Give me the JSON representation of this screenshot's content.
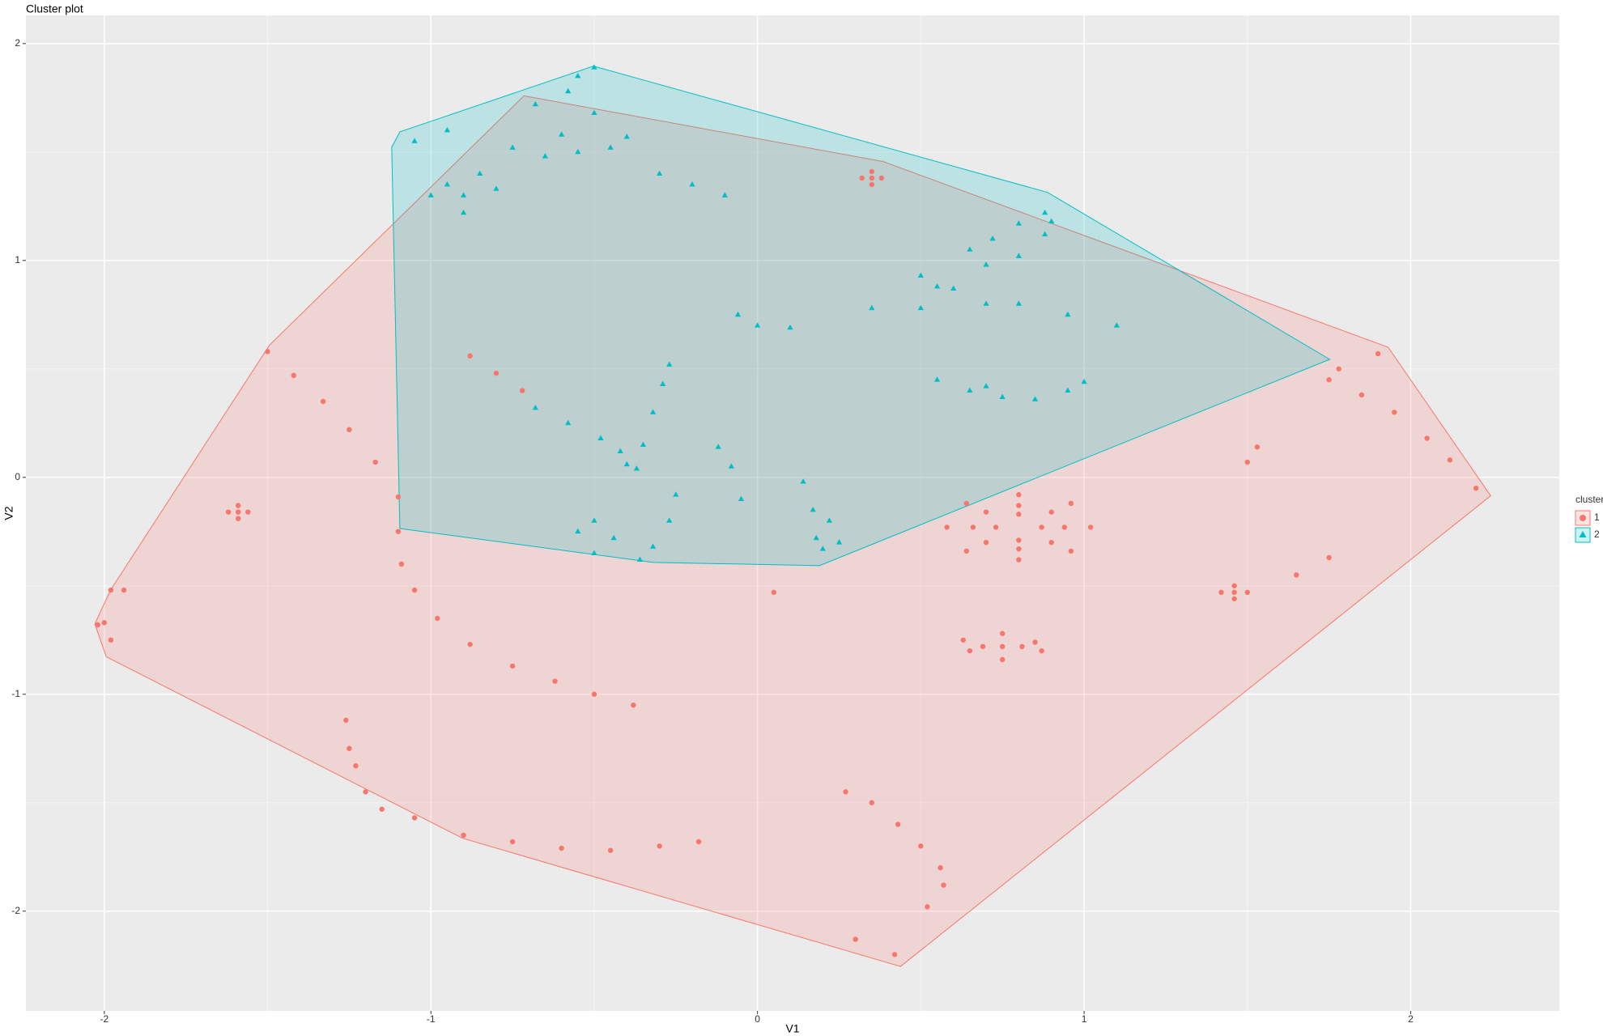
{
  "chart_data": {
    "type": "scatter",
    "title": "Cluster plot",
    "x_label": "V1",
    "y_label": "V2",
    "legend_title": "cluster",
    "xlim": [
      -2.24,
      2.455
    ],
    "ylim": [
      -2.46,
      2.13
    ],
    "xticks": [
      -2,
      -1,
      0,
      1,
      2
    ],
    "yticks": [
      -2,
      -1,
      0,
      1,
      2
    ],
    "grid": true,
    "legend": "right",
    "series": [
      {
        "name": "1",
        "color": "#F8766D",
        "shape": "circle",
        "x": [
          -1.5,
          -1.42,
          -1.33,
          -1.25,
          -1.17,
          -1.1,
          -1.1,
          -1.09,
          -1.05,
          -0.98,
          -0.88,
          -0.75,
          -0.62,
          -0.5,
          -0.38,
          -1.59,
          -1.62,
          -1.56,
          -1.59,
          -1.59,
          -1.98,
          -2.0,
          -1.98,
          -2.02,
          -1.94,
          -1.26,
          -1.25,
          -1.23,
          -1.2,
          -1.15,
          -1.05,
          -0.9,
          -0.75,
          -0.6,
          -0.45,
          -0.3,
          -0.18,
          0.05,
          0.87,
          0.8,
          0.73,
          0.8,
          0.94,
          0.9,
          0.8,
          0.7,
          0.66,
          0.7,
          0.8,
          0.9,
          1.02,
          0.96,
          0.8,
          0.64,
          0.58,
          0.64,
          0.8,
          0.96,
          0.75,
          0.81,
          0.69,
          0.75,
          0.75,
          0.85,
          0.65,
          0.63,
          0.87,
          1.46,
          1.5,
          1.42,
          1.46,
          1.46,
          0.35,
          0.38,
          0.32,
          0.35,
          0.35,
          1.75,
          1.85,
          1.95,
          2.05,
          2.12,
          2.2,
          1.78,
          1.9,
          1.5,
          1.53,
          1.65,
          1.75,
          0.27,
          0.35,
          0.43,
          0.5,
          0.56,
          0.57,
          0.52,
          0.42,
          0.3,
          -0.88,
          -0.8,
          -0.72
        ],
        "y": [
          0.58,
          0.47,
          0.35,
          0.22,
          0.07,
          -0.09,
          -0.25,
          -0.4,
          -0.52,
          -0.65,
          -0.77,
          -0.87,
          -0.94,
          -1.0,
          -1.05,
          -0.16,
          -0.16,
          -0.16,
          -0.19,
          -0.13,
          -0.52,
          -0.67,
          -0.75,
          -0.68,
          -0.52,
          -1.12,
          -1.25,
          -1.33,
          -1.45,
          -1.53,
          -1.57,
          -1.65,
          -1.68,
          -1.71,
          -1.72,
          -1.7,
          -1.68,
          -0.53,
          -0.23,
          -0.17,
          -0.23,
          -0.29,
          -0.23,
          -0.16,
          -0.13,
          -0.16,
          -0.23,
          -0.3,
          -0.33,
          -0.3,
          -0.23,
          -0.12,
          -0.08,
          -0.12,
          -0.23,
          -0.34,
          -0.38,
          -0.34,
          -0.78,
          -0.78,
          -0.78,
          -0.72,
          -0.84,
          -0.76,
          -0.8,
          -0.75,
          -0.8,
          -0.53,
          -0.53,
          -0.53,
          -0.5,
          -0.56,
          1.38,
          1.38,
          1.38,
          1.41,
          1.35,
          0.45,
          0.38,
          0.3,
          0.18,
          0.08,
          -0.05,
          0.5,
          0.57,
          0.07,
          0.14,
          -0.45,
          -0.37,
          -1.45,
          -1.5,
          -1.6,
          -1.7,
          -1.8,
          -1.88,
          -1.98,
          -2.2,
          -2.13,
          0.56,
          0.48,
          0.4
        ],
        "hull_x": [
          -1.494,
          -0.715,
          0.385,
          1.931,
          2.245,
          0.438,
          -0.903,
          -1.994,
          -2.029,
          -1.981
        ],
        "hull_y": [
          0.61,
          1.759,
          1.456,
          0.6,
          -0.085,
          -2.255,
          -1.664,
          -0.827,
          -0.676,
          -0.52
        ]
      },
      {
        "name": "2",
        "color": "#00BFC4",
        "shape": "triangle",
        "x": [
          -0.5,
          -0.55,
          -0.58,
          -0.68,
          -0.5,
          -0.6,
          -0.4,
          -0.45,
          -0.55,
          -0.65,
          -0.75,
          -0.85,
          -0.95,
          -1.0,
          -0.9,
          -0.8,
          -1.05,
          -0.95,
          -0.9,
          -0.3,
          -0.2,
          -0.1,
          0.65,
          0.72,
          0.8,
          0.88,
          0.88,
          0.8,
          0.7,
          0.9,
          0.5,
          0.6,
          0.7,
          0.5,
          0.8,
          0.95,
          1.1,
          0.35,
          0.55,
          0.0,
          0.1,
          -0.06,
          0.55,
          0.65,
          0.75,
          0.85,
          0.95,
          1.0,
          0.7,
          -0.68,
          -0.58,
          -0.48,
          -0.42,
          -0.4,
          -0.35,
          -0.32,
          -0.29,
          -0.27,
          -0.37,
          -0.12,
          -0.08,
          -0.05,
          0.14,
          0.17,
          0.18,
          0.2,
          0.22,
          0.25,
          -0.25,
          -0.27,
          -0.32,
          -0.36,
          -0.5,
          -0.55,
          -0.44,
          -0.5
        ],
        "y": [
          1.89,
          1.85,
          1.78,
          1.72,
          1.68,
          1.58,
          1.57,
          1.52,
          1.5,
          1.48,
          1.52,
          1.4,
          1.35,
          1.3,
          1.3,
          1.33,
          1.55,
          1.6,
          1.22,
          1.4,
          1.35,
          1.3,
          1.05,
          1.1,
          1.17,
          1.22,
          1.12,
          1.02,
          0.98,
          1.18,
          0.93,
          0.87,
          0.8,
          0.78,
          0.8,
          0.75,
          0.7,
          0.78,
          0.88,
          0.7,
          0.69,
          0.75,
          0.45,
          0.4,
          0.37,
          0.36,
          0.4,
          0.44,
          0.42,
          0.32,
          0.25,
          0.18,
          0.12,
          0.06,
          0.15,
          0.3,
          0.43,
          0.52,
          0.04,
          0.14,
          0.05,
          -0.1,
          -0.02,
          -0.15,
          -0.28,
          -0.33,
          -0.2,
          -0.3,
          -0.08,
          -0.2,
          -0.32,
          -0.38,
          -0.2,
          -0.25,
          -0.28,
          -0.35
        ],
        "hull_x": [
          -0.502,
          0.888,
          1.752,
          0.19,
          -0.319,
          -1.095,
          -1.12,
          -1.095
        ],
        "hull_y": [
          1.896,
          1.314,
          0.544,
          -0.407,
          -0.392,
          -0.236,
          1.522,
          1.593
        ]
      }
    ]
  }
}
